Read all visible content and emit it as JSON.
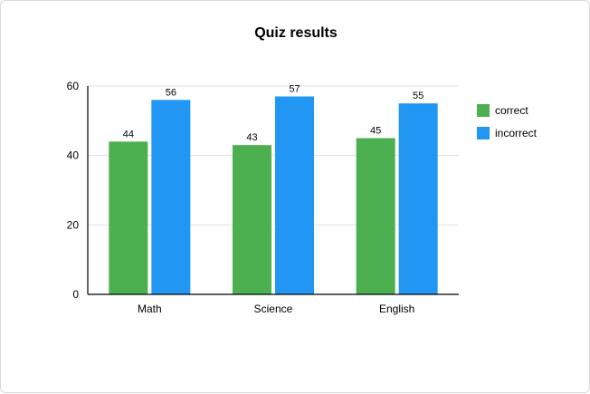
{
  "chart_data": {
    "type": "bar",
    "title": "Quiz results",
    "xlabel": "",
    "ylabel": "",
    "categories": [
      "Math",
      "Science",
      "English"
    ],
    "series": [
      {
        "name": "correct",
        "values": [
          44,
          43,
          45
        ],
        "color": "#4caf50"
      },
      {
        "name": "incorrect",
        "values": [
          56,
          57,
          55
        ],
        "color": "#2196f3"
      }
    ],
    "ylim": [
      0,
      60
    ],
    "yticks": [
      0,
      20,
      40,
      60
    ],
    "grid": true,
    "legend": "right"
  }
}
